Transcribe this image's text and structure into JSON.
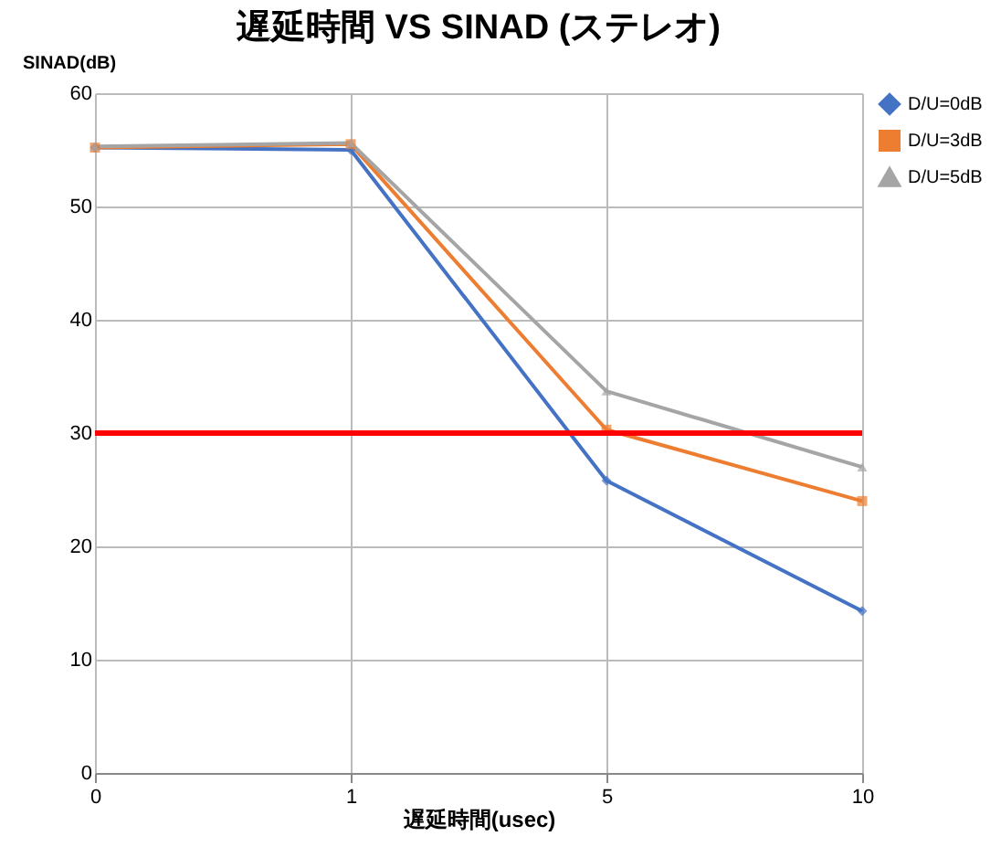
{
  "chart_data": {
    "type": "line",
    "title": "遅延時間 VS SINAD (ステレオ)",
    "xlabel": "遅延時間(usec)",
    "ylabel": "SINAD(dB)",
    "categories": [
      "0",
      "1",
      "5",
      "10"
    ],
    "series": [
      {
        "name": "D/U=0dB",
        "color": "#4472c4",
        "marker": "diamond",
        "values": [
          55.2,
          55.0,
          25.8,
          14.3
        ]
      },
      {
        "name": "D/U=3dB",
        "color": "#ed7d31",
        "marker": "square",
        "values": [
          55.2,
          55.5,
          30.3,
          24.0
        ]
      },
      {
        "name": "D/U=5dB",
        "color": "#a5a5a5",
        "marker": "triangle",
        "values": [
          55.3,
          55.6,
          33.7,
          27.0
        ]
      }
    ],
    "ylim": [
      0,
      60
    ],
    "yticks": [
      0,
      10,
      20,
      30,
      40,
      50,
      60
    ],
    "ref_lines": [
      {
        "axis": "y",
        "value": 30,
        "color": "#ff0000"
      }
    ],
    "grid": true,
    "legend": "right"
  }
}
